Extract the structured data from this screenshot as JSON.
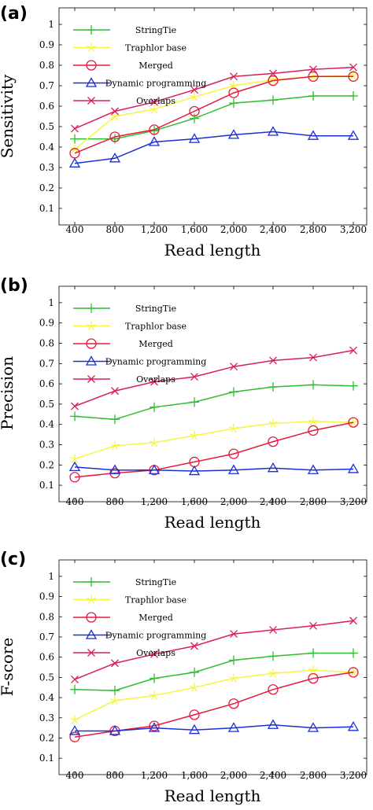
{
  "chart_data": [
    {
      "type": "line",
      "panel_label": "(a)",
      "xlabel": "Read length",
      "ylabel": "Sensitivity",
      "categories": [
        "400",
        "800",
        "1,200",
        "1,600",
        "2,000",
        "2,400",
        "2,800",
        "3,200"
      ],
      "yticks": [
        "0.1",
        "0.2",
        "0.3",
        "0.4",
        "0.5",
        "0.6",
        "0.7",
        "0.8",
        "0.9",
        "1"
      ],
      "ylim": [
        0.05,
        1.05
      ],
      "grid": false,
      "legend_position": "top-left",
      "series": [
        {
          "name": "StringTie",
          "color": "#2ebd2e",
          "marker": "plus",
          "values": [
            0.44,
            0.44,
            0.48,
            0.54,
            0.615,
            0.63,
            0.65,
            0.65
          ]
        },
        {
          "name": "Traphlor base",
          "color": "#f5f542",
          "marker": "star",
          "values": [
            0.39,
            0.55,
            0.585,
            0.645,
            0.7,
            0.73,
            0.745,
            0.75
          ]
        },
        {
          "name": "Merged",
          "color": "#e6193c",
          "marker": "circle",
          "values": [
            0.37,
            0.45,
            0.485,
            0.575,
            0.665,
            0.725,
            0.745,
            0.745
          ]
        },
        {
          "name": "Dynamic programming",
          "color": "#1a2fd6",
          "marker": "triangle",
          "values": [
            0.32,
            0.345,
            0.425,
            0.44,
            0.46,
            0.475,
            0.455,
            0.455
          ]
        },
        {
          "name": "Overlaps",
          "color": "#d91e5b",
          "marker": "x",
          "values": [
            0.49,
            0.575,
            0.62,
            0.68,
            0.745,
            0.76,
            0.78,
            0.79
          ]
        }
      ]
    },
    {
      "type": "line",
      "panel_label": "(b)",
      "xlabel": "Read length",
      "ylabel": "Precision",
      "categories": [
        "400",
        "800",
        "1,200",
        "1,600",
        "2,000",
        "2,400",
        "2,800",
        "3,200"
      ],
      "yticks": [
        "0.1",
        "0.2",
        "0.3",
        "0.4",
        "0.5",
        "0.6",
        "0.7",
        "0.8",
        "0.9",
        "1"
      ],
      "ylim": [
        0.05,
        1.05
      ],
      "grid": false,
      "legend_position": "top-left",
      "series": [
        {
          "name": "StringTie",
          "color": "#2ebd2e",
          "marker": "plus",
          "values": [
            0.44,
            0.425,
            0.485,
            0.51,
            0.56,
            0.585,
            0.595,
            0.59
          ]
        },
        {
          "name": "Traphlor base",
          "color": "#f5f542",
          "marker": "star",
          "values": [
            0.23,
            0.295,
            0.31,
            0.345,
            0.38,
            0.405,
            0.415,
            0.41
          ]
        },
        {
          "name": "Merged",
          "color": "#e6193c",
          "marker": "circle",
          "values": [
            0.14,
            0.16,
            0.175,
            0.215,
            0.255,
            0.315,
            0.37,
            0.41
          ]
        },
        {
          "name": "Dynamic programming",
          "color": "#1a2fd6",
          "marker": "triangle",
          "values": [
            0.19,
            0.175,
            0.175,
            0.17,
            0.175,
            0.185,
            0.175,
            0.18
          ]
        },
        {
          "name": "Overlaps",
          "color": "#d91e5b",
          "marker": "x",
          "values": [
            0.49,
            0.565,
            0.61,
            0.635,
            0.685,
            0.715,
            0.73,
            0.765
          ]
        }
      ]
    },
    {
      "type": "line",
      "panel_label": "(c)",
      "xlabel": "Read length",
      "ylabel": "F-score",
      "categories": [
        "400",
        "800",
        "1,200",
        "1,600",
        "2,000",
        "2,400",
        "2,800",
        "3,200"
      ],
      "yticks": [
        "0.1",
        "0.2",
        "0.3",
        "0.4",
        "0.5",
        "0.6",
        "0.7",
        "0.8",
        "0.9",
        "1"
      ],
      "ylim": [
        0.05,
        1.05
      ],
      "grid": false,
      "legend_position": "top-left",
      "series": [
        {
          "name": "StringTie",
          "color": "#2ebd2e",
          "marker": "plus",
          "values": [
            0.44,
            0.435,
            0.495,
            0.525,
            0.585,
            0.605,
            0.62,
            0.62
          ]
        },
        {
          "name": "Traphlor base",
          "color": "#f5f542",
          "marker": "star",
          "values": [
            0.29,
            0.385,
            0.41,
            0.45,
            0.495,
            0.52,
            0.535,
            0.525
          ]
        },
        {
          "name": "Merged",
          "color": "#e6193c",
          "marker": "circle",
          "values": [
            0.205,
            0.235,
            0.26,
            0.315,
            0.37,
            0.44,
            0.495,
            0.525
          ]
        },
        {
          "name": "Dynamic programming",
          "color": "#1a2fd6",
          "marker": "triangle",
          "values": [
            0.235,
            0.235,
            0.25,
            0.24,
            0.25,
            0.265,
            0.25,
            0.255
          ]
        },
        {
          "name": "Overlaps",
          "color": "#d91e5b",
          "marker": "x",
          "values": [
            0.49,
            0.57,
            0.615,
            0.655,
            0.715,
            0.735,
            0.755,
            0.78
          ]
        }
      ]
    }
  ]
}
